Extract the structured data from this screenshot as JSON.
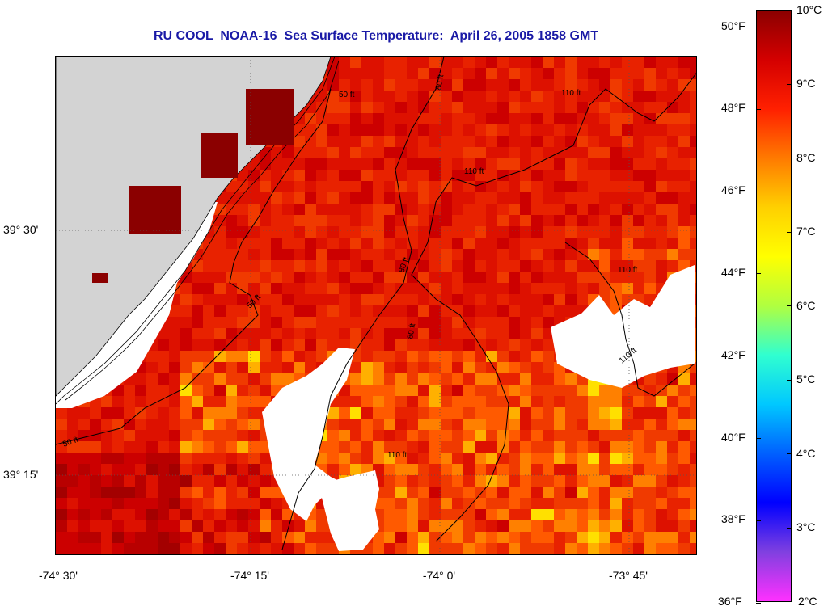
{
  "title": "RU COOL  NOAA-16  Sea Surface Temperature:  April 26, 2005 1858 GMT",
  "latitude_labels": [
    "39° 30'",
    "39° 15'"
  ],
  "longitude_labels": [
    "-74° 30'",
    "-74° 15'",
    "-74° 0'",
    "-73° 45'"
  ],
  "contours": [
    "50 ft",
    "80 ft",
    "110 ft"
  ],
  "colorbar": {
    "celsius": [
      "10°C",
      "9°C",
      "8°C",
      "7°C",
      "6°C",
      "5°C",
      "4°C",
      "3°C",
      "2°C"
    ],
    "fahrenheit": [
      "50°F",
      "48°F",
      "46°F",
      "44°F",
      "42°F",
      "40°F",
      "38°F",
      "36°F"
    ],
    "gradient": [
      "#8b0000",
      "#d40000",
      "#ff2000",
      "#ff7a00",
      "#ffd000",
      "#ffff00",
      "#b0ff40",
      "#30ffd0",
      "#00c8ff",
      "#0060ff",
      "#0000ff",
      "#8040e0",
      "#ff30ff"
    ]
  },
  "colors": {
    "land": "#d3d3d3",
    "cloud": "#ffffff",
    "title": "#1a1aa6"
  }
}
